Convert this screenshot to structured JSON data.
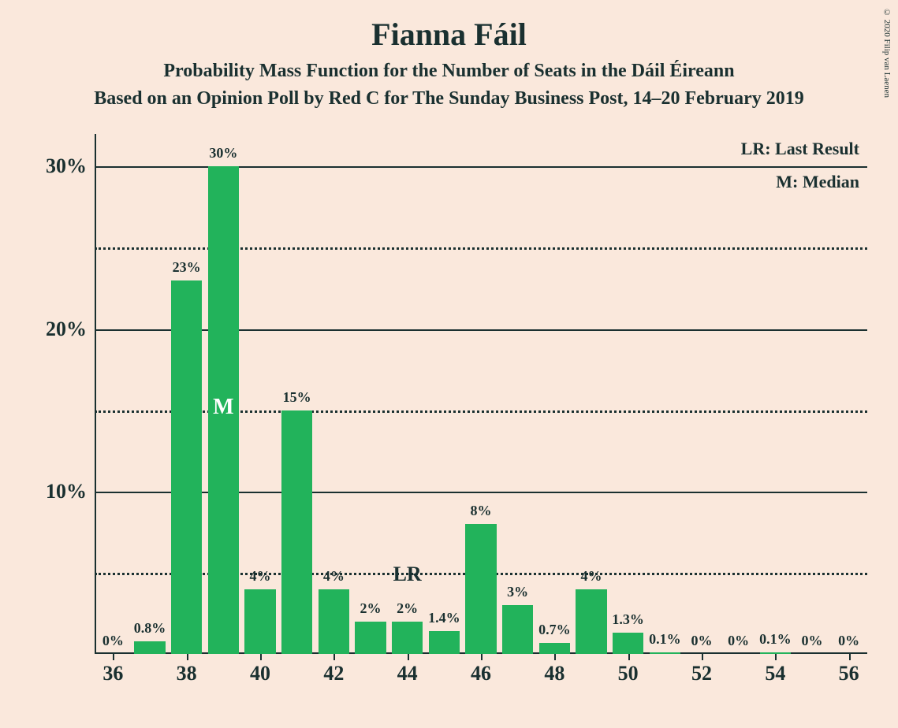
{
  "chart": {
    "type": "bar",
    "title": "Fianna Fáil",
    "subtitle1": "Probability Mass Function for the Number of Seats in the Dáil Éireann",
    "subtitle2": "Based on an Opinion Poll by Red C for The Sunday Business Post, 14–20 February 2019",
    "copyright": "© 2020 Filip van Laenen",
    "background_color": "#fae8dc",
    "text_color": "#1a3030",
    "bar_color": "#22b35b",
    "grid_color": "#1a3030",
    "x_values": [
      36,
      37,
      38,
      39,
      40,
      41,
      42,
      43,
      44,
      45,
      46,
      47,
      48,
      49,
      50,
      51,
      52,
      53,
      54,
      55,
      56
    ],
    "y_values": [
      0,
      0.8,
      23,
      30,
      4,
      15,
      4,
      2,
      2,
      1.4,
      8,
      3,
      0.7,
      4,
      1.3,
      0.1,
      0,
      0,
      0.1,
      0,
      0
    ],
    "bar_labels": [
      "0%",
      "0.8%",
      "23%",
      "30%",
      "4%",
      "15%",
      "4%",
      "2%",
      "2%",
      "1.4%",
      "8%",
      "3%",
      "0.7%",
      "4%",
      "1.3%",
      "0.1%",
      "0%",
      "0%",
      "0.1%",
      "0%",
      "0%"
    ],
    "x_tick_labels": [
      "36",
      "38",
      "40",
      "42",
      "44",
      "46",
      "48",
      "50",
      "52",
      "54",
      "56"
    ],
    "x_tick_positions": [
      36,
      38,
      40,
      42,
      44,
      46,
      48,
      50,
      52,
      54,
      56
    ],
    "y_tick_labels": [
      "10%",
      "20%",
      "30%"
    ],
    "y_tick_positions": [
      10,
      20,
      30
    ],
    "y_dotted_positions": [
      5,
      15,
      25
    ],
    "ylim_max": 32,
    "xlim": [
      35.5,
      56.5
    ],
    "median_position": 39,
    "median_label": "M",
    "last_result_position": 44,
    "last_result_label": "LR",
    "legend_lr": "LR: Last Result",
    "legend_m": "M: Median",
    "bar_width_ratio": 0.85,
    "title_fontsize": 40,
    "subtitle_fontsize": 24,
    "axis_label_fontsize": 26,
    "bar_label_fontsize": 18
  }
}
